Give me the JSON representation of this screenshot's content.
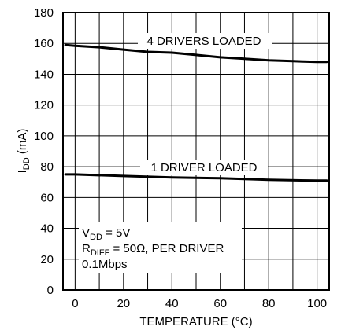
{
  "chart_data": {
    "type": "line",
    "xlabel": "TEMPERATURE (°C)",
    "ylabel_main": "I",
    "ylabel_sub": "DD",
    "ylabel_unit": " (mA)",
    "xlim": [
      -5,
      105
    ],
    "ylim": [
      0,
      180
    ],
    "xticks": [
      0,
      20,
      40,
      60,
      80,
      100
    ],
    "yticks": [
      0,
      20,
      40,
      60,
      80,
      100,
      120,
      140,
      160,
      180
    ],
    "grid": true,
    "series": [
      {
        "name": "4 DRIVERS LOADED",
        "x": [
          -4,
          0,
          10,
          20,
          30,
          40,
          50,
          60,
          70,
          80,
          90,
          100,
          104
        ],
        "y": [
          159,
          158.5,
          157.5,
          156,
          154.5,
          154,
          152.5,
          151,
          150,
          149,
          148.5,
          148,
          148
        ]
      },
      {
        "name": "1 DRIVER LOADED",
        "x": [
          -4,
          0,
          20,
          40,
          60,
          80,
          100,
          104
        ],
        "y": [
          75,
          75,
          74,
          73,
          72.5,
          71.5,
          71,
          71
        ]
      }
    ],
    "conditions": {
      "line1_main": "V",
      "line1_sub": "DD",
      "line1_rest": " = 5V",
      "line2_main": "R",
      "line2_sub": "DIFF",
      "line2_rest": " = 50Ω, PER DRIVER",
      "line3": "0.1Mbps"
    }
  }
}
